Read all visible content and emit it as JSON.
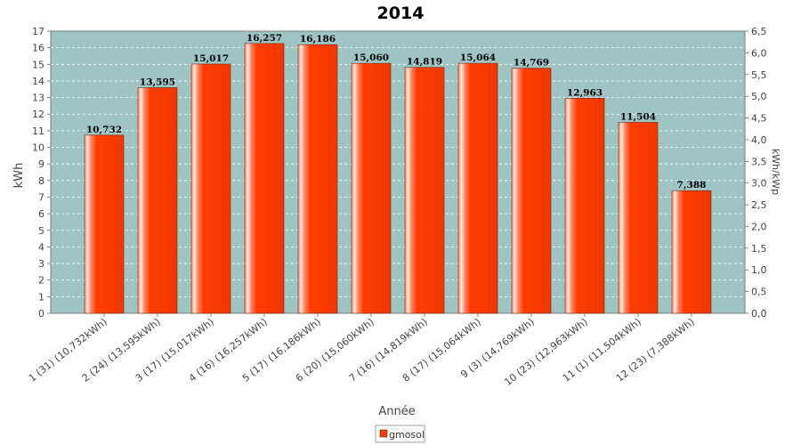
{
  "chart_data": {
    "type": "bar",
    "title": "2014",
    "xlabel": "Année",
    "ylabel": "kWh",
    "y2label": "kWh/kWp",
    "ylim": [
      0,
      17
    ],
    "y2lim": [
      0,
      6.5
    ],
    "yticks": [
      "0",
      "1",
      "2",
      "3",
      "4",
      "5",
      "6",
      "7",
      "8",
      "9",
      "10",
      "11",
      "12",
      "13",
      "14",
      "15",
      "16",
      "17"
    ],
    "y2ticks": [
      "0,0",
      "0,5",
      "1,0",
      "1,5",
      "2,0",
      "2,5",
      "3,0",
      "3,5",
      "4,0",
      "4,5",
      "5,0",
      "5,5",
      "6,0",
      "6,5"
    ],
    "categories": [
      "1 (31)  (10,732kWh)",
      "2 (24)  (13,595kWh)",
      "3 (17)  (15,017kWh)",
      "4 (16)  (16,257kWh)",
      "5 (17)  (16,186kWh)",
      "6 (20)  (15,060kWh)",
      "7 (16)  (14,819kWh)",
      "8 (17)  (15,064kWh)",
      "9 (3)  (14,769kWh)",
      "10 (23)  (12,963kWh)",
      "11 (1)  (11,504kWh)",
      "12 (23)  (7,388kWh)"
    ],
    "series": [
      {
        "name": "gmosol",
        "color": "#ff3c00",
        "values": [
          10.732,
          13.595,
          15.017,
          16.257,
          16.186,
          15.06,
          14.819,
          15.064,
          14.769,
          12.963,
          11.504,
          7.388
        ],
        "labels": [
          "10,732",
          "13,595",
          "15,017",
          "16,257",
          "16,186",
          "15,060",
          "14,819",
          "15,064",
          "14,769",
          "12,963",
          "11,504",
          "7,388"
        ]
      }
    ],
    "plot_background": "#9ec5c4",
    "grid": true,
    "legend": "bottom-center"
  }
}
